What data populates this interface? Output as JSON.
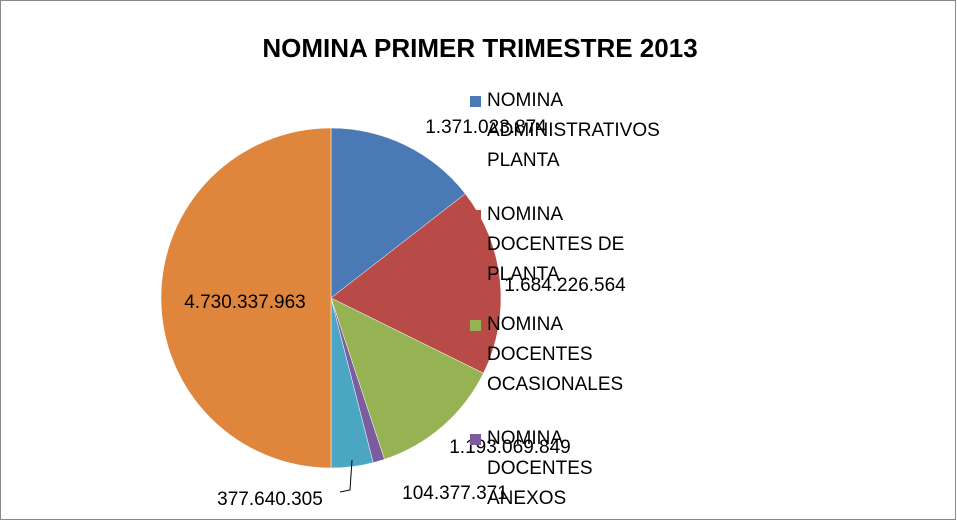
{
  "chart_data": {
    "type": "pie",
    "title": "NOMINA PRIMER TRIMESTRE 2013",
    "categories": [
      "NOMINA ADMINISTRATIVOS PLANTA",
      "NOMINA DOCENTES DE PLANTA",
      "NOMINA DOCENTES OCASIONALES",
      "NOMINA DOCENTES ANEXOS",
      null,
      null
    ],
    "values": [
      1371023874,
      1684226564,
      1193069849,
      104377371,
      377640305,
      4730337963
    ],
    "value_labels": [
      "1.371.023.874",
      "1.684.226.564",
      "1.193.069.849",
      "104.377.371",
      "377.640.305",
      "4.730.337.963"
    ],
    "colors": [
      "#4a7ab5",
      "#b84a47",
      "#95b353",
      "#7b5c9e",
      "#4aa6c2",
      "#e0853c"
    ],
    "legend": "right"
  }
}
